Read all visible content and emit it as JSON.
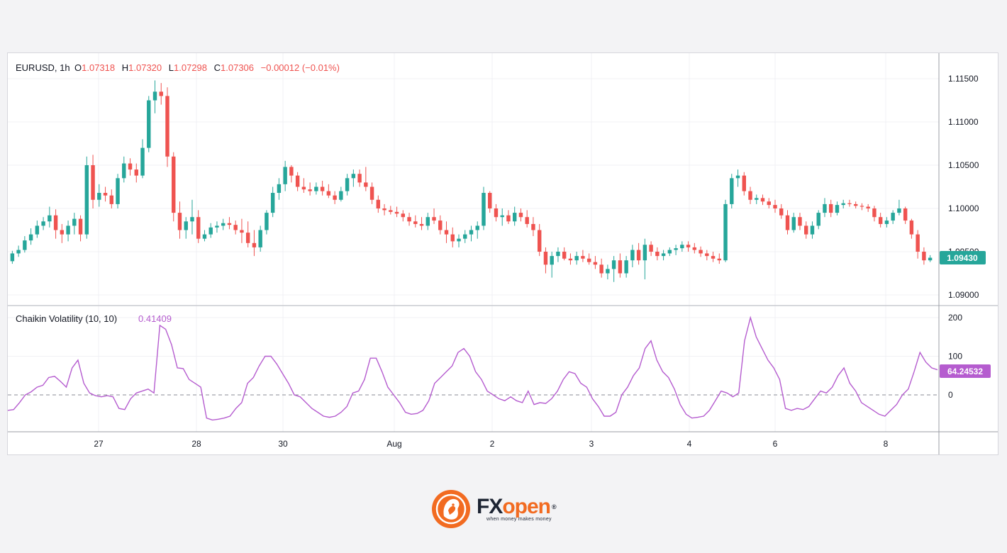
{
  "header": {
    "symbol": "EURUSD, 1h",
    "o_label": "O",
    "o_value": "1.07318",
    "h_label": "H",
    "h_value": "1.07320",
    "l_label": "L",
    "l_value": "1.07298",
    "c_label": "C",
    "c_value": "1.07306",
    "change": "−0.00012 (−0.01%)"
  },
  "indicator": {
    "name": "Chaikin Volatility (10, 10)",
    "value": "0.41409"
  },
  "price_badge": "1.09430",
  "indicator_badge": "64.24532",
  "colors": {
    "up": "#26a69a",
    "down": "#ef5350",
    "indicator": "#b55ccf"
  },
  "brand": {
    "fx": "FX",
    "open": "open",
    "reg": "®",
    "tagline": "when money makes money"
  },
  "chart_data": [
    {
      "type": "candlestick",
      "series_name": "EURUSD, 1h",
      "ylim": [
        1.0885,
        1.1175
      ],
      "y_ticks": [
        "1.11500",
        "1.11000",
        "1.10500",
        "1.10000",
        "1.09500",
        "1.09000"
      ],
      "x_ticks": [
        "27",
        "28",
        "30",
        "Aug",
        "2",
        "3",
        "4",
        "6",
        "8"
      ],
      "grid": true,
      "last_close": 1.0943,
      "candles": [
        [
          1.0939,
          1.0951,
          1.0936,
          1.0948
        ],
        [
          1.0948,
          1.0957,
          1.0944,
          1.0952
        ],
        [
          1.0952,
          1.0968,
          1.0949,
          1.0963
        ],
        [
          1.0963,
          1.0977,
          1.0958,
          1.097
        ],
        [
          1.097,
          1.0986,
          1.0966,
          1.098
        ],
        [
          1.098,
          1.099,
          1.0975,
          1.0985
        ],
        [
          1.0985,
          1.1002,
          1.0978,
          1.0992
        ],
        [
          1.0992,
          1.0999,
          1.0965,
          1.0975
        ],
        [
          1.0975,
          1.0982,
          1.096,
          1.097
        ],
        [
          1.097,
          1.0986,
          1.0962,
          1.098
        ],
        [
          1.098,
          1.0995,
          1.097,
          1.0988
        ],
        [
          1.0988,
          1.0992,
          1.0962,
          1.097
        ],
        [
          1.097,
          1.106,
          1.0965,
          1.105
        ],
        [
          1.105,
          1.1062,
          1.1,
          1.101
        ],
        [
          1.101,
          1.1028,
          1.1002,
          1.1018
        ],
        [
          1.1018,
          1.1025,
          1.1008,
          1.1015
        ],
        [
          1.1015,
          1.1022,
          1.1,
          1.1005
        ],
        [
          1.1005,
          1.104,
          1.1,
          1.1035
        ],
        [
          1.1035,
          1.106,
          1.103,
          1.1052
        ],
        [
          1.1052,
          1.1058,
          1.1038,
          1.1045
        ],
        [
          1.1045,
          1.1052,
          1.103,
          1.1038
        ],
        [
          1.1038,
          1.108,
          1.1035,
          1.107
        ],
        [
          1.107,
          1.113,
          1.1065,
          1.1125
        ],
        [
          1.1125,
          1.1148,
          1.111,
          1.1135
        ],
        [
          1.1135,
          1.1145,
          1.112,
          1.113
        ],
        [
          1.113,
          1.114,
          1.1048,
          1.106
        ],
        [
          1.106,
          1.1065,
          1.0985,
          1.0995
        ],
        [
          1.0995,
          1.1008,
          1.0965,
          1.0975
        ],
        [
          1.0975,
          1.099,
          1.0965,
          1.0985
        ],
        [
          1.0985,
          1.101,
          1.097,
          1.099
        ],
        [
          1.099,
          1.0998,
          1.096,
          1.0965
        ],
        [
          1.0965,
          1.0975,
          1.0962,
          1.097
        ],
        [
          1.097,
          1.0983,
          1.0966,
          1.0978
        ],
        [
          1.0978,
          1.0985,
          1.0972,
          1.098
        ],
        [
          1.098,
          1.0988,
          1.0975,
          1.0983
        ],
        [
          1.0983,
          1.099,
          1.0976,
          1.0981
        ],
        [
          1.0981,
          1.0986,
          1.097,
          1.0975
        ],
        [
          1.0975,
          1.0988,
          1.096,
          1.0972
        ],
        [
          1.0972,
          1.0985,
          1.0955,
          1.096
        ],
        [
          1.096,
          1.0975,
          1.0945,
          1.0955
        ],
        [
          1.0955,
          1.098,
          1.095,
          1.0975
        ],
        [
          1.0975,
          1.0998,
          1.097,
          1.0995
        ],
        [
          1.0995,
          1.1025,
          1.099,
          1.1018
        ],
        [
          1.1018,
          1.1035,
          1.101,
          1.1028
        ],
        [
          1.1028,
          1.1055,
          1.102,
          1.1048
        ],
        [
          1.1048,
          1.105,
          1.103,
          1.1038
        ],
        [
          1.1038,
          1.1042,
          1.102,
          1.1025
        ],
        [
          1.1025,
          1.1035,
          1.1018,
          1.1022
        ],
        [
          1.1022,
          1.103,
          1.1015,
          1.102
        ],
        [
          1.102,
          1.103,
          1.1016,
          1.1025
        ],
        [
          1.1025,
          1.1032,
          1.1015,
          1.102
        ],
        [
          1.102,
          1.1028,
          1.1012,
          1.1015
        ],
        [
          1.1015,
          1.102,
          1.1005,
          1.101
        ],
        [
          1.101,
          1.1025,
          1.1008,
          1.102
        ],
        [
          1.102,
          1.104,
          1.1015,
          1.1035
        ],
        [
          1.1035,
          1.1045,
          1.1025,
          1.104
        ],
        [
          1.104,
          1.1045,
          1.1025,
          1.103
        ],
        [
          1.103,
          1.1048,
          1.102,
          1.1025
        ],
        [
          1.1025,
          1.103,
          1.1005,
          1.101
        ],
        [
          1.101,
          1.1015,
          1.0995,
          1.1
        ],
        [
          1.1,
          1.1005,
          1.0992,
          1.0998
        ],
        [
          1.0998,
          1.1003,
          1.0993,
          1.0996
        ],
        [
          1.0996,
          1.1002,
          1.099,
          1.0994
        ],
        [
          1.0994,
          1.0998,
          1.0985,
          1.099
        ],
        [
          1.099,
          1.0995,
          1.098,
          1.0985
        ],
        [
          1.0985,
          1.0992,
          1.0978,
          1.0982
        ],
        [
          1.0982,
          1.099,
          1.0975,
          1.098
        ],
        [
          1.098,
          1.0995,
          1.0975,
          1.099
        ],
        [
          1.099,
          1.1,
          1.0982,
          1.0986
        ],
        [
          1.0986,
          1.0992,
          1.097,
          1.0975
        ],
        [
          1.0975,
          1.0985,
          1.096,
          1.097
        ],
        [
          1.097,
          1.0978,
          1.0955,
          1.0962
        ],
        [
          1.0962,
          1.097,
          1.0955,
          1.0965
        ],
        [
          1.0965,
          1.0975,
          1.096,
          1.097
        ],
        [
          1.097,
          1.098,
          1.0962,
          1.0975
        ],
        [
          1.0975,
          1.0985,
          1.0965,
          1.098
        ],
        [
          1.098,
          1.1025,
          1.0975,
          1.1018
        ],
        [
          1.1018,
          1.102,
          1.0995,
          1.1
        ],
        [
          1.1,
          1.1005,
          1.0985,
          1.099
        ],
        [
          1.099,
          1.1,
          1.098,
          1.0992
        ],
        [
          1.0992,
          1.0998,
          1.0982,
          1.0985
        ],
        [
          1.0985,
          1.1002,
          1.098,
          1.0995
        ],
        [
          1.0995,
          1.1,
          1.0985,
          1.099
        ],
        [
          1.099,
          1.0998,
          1.0978,
          1.0982
        ],
        [
          1.0982,
          1.099,
          1.0968,
          1.0975
        ],
        [
          1.0975,
          1.0982,
          1.0945,
          1.095
        ],
        [
          1.095,
          1.0955,
          1.0925,
          1.0935
        ],
        [
          1.0935,
          1.095,
          1.092,
          1.0945
        ],
        [
          1.0945,
          1.0955,
          1.0938,
          1.095
        ],
        [
          1.095,
          1.0955,
          1.094,
          1.0942
        ],
        [
          1.0942,
          1.0948,
          1.0935,
          1.094
        ],
        [
          1.094,
          1.095,
          1.0935,
          1.0945
        ],
        [
          1.0945,
          1.0952,
          1.0938,
          1.0942
        ],
        [
          1.0942,
          1.0948,
          1.0935,
          1.0938
        ],
        [
          1.0938,
          1.0945,
          1.093,
          1.0935
        ],
        [
          1.0935,
          1.0942,
          1.092,
          1.0925
        ],
        [
          1.0925,
          1.0935,
          1.0918,
          1.093
        ],
        [
          1.093,
          1.0945,
          1.0915,
          1.094
        ],
        [
          1.094,
          1.0948,
          1.092,
          1.0925
        ],
        [
          1.0925,
          1.0945,
          1.092,
          1.094
        ],
        [
          1.094,
          1.0958,
          1.0932,
          1.0952
        ],
        [
          1.0952,
          1.096,
          1.0935,
          1.094
        ],
        [
          1.094,
          1.0965,
          1.0918,
          1.0958
        ],
        [
          1.0958,
          1.0962,
          1.0945,
          1.095
        ],
        [
          1.095,
          1.0955,
          1.094,
          1.0945
        ],
        [
          1.0945,
          1.0952,
          1.094,
          1.0948
        ],
        [
          1.0948,
          1.0955,
          1.0945,
          1.0952
        ],
        [
          1.0952,
          1.0958,
          1.0946,
          1.0954
        ],
        [
          1.0954,
          1.0962,
          1.095,
          1.0958
        ],
        [
          1.0958,
          1.0962,
          1.095,
          1.0955
        ],
        [
          1.0955,
          1.096,
          1.0948,
          1.0952
        ],
        [
          1.0952,
          1.0956,
          1.0944,
          1.0948
        ],
        [
          1.0948,
          1.0952,
          1.094,
          1.0945
        ],
        [
          1.0945,
          1.095,
          1.0938,
          1.0942
        ],
        [
          1.0942,
          1.0948,
          1.0936,
          1.094
        ],
        [
          1.094,
          1.101,
          1.0938,
          1.1005
        ],
        [
          1.1005,
          1.104,
          1.1,
          1.1035
        ],
        [
          1.1035,
          1.1045,
          1.1025,
          1.1038
        ],
        [
          1.1038,
          1.1042,
          1.1015,
          1.102
        ],
        [
          1.102,
          1.1025,
          1.1005,
          1.101
        ],
        [
          1.101,
          1.1016,
          1.1005,
          1.1012
        ],
        [
          1.1012,
          1.1016,
          1.1004,
          1.1008
        ],
        [
          1.1008,
          1.1012,
          1.1,
          1.1004
        ],
        [
          1.1004,
          1.101,
          1.0995,
          1.1
        ],
        [
          1.1,
          1.1005,
          1.0988,
          1.0992
        ],
        [
          1.0992,
          1.0998,
          1.097,
          1.0975
        ],
        [
          1.0975,
          1.0995,
          1.0972,
          1.099
        ],
        [
          1.099,
          1.0995,
          1.0975,
          1.098
        ],
        [
          1.098,
          1.0985,
          1.0965,
          1.097
        ],
        [
          1.097,
          1.0985,
          1.0965,
          1.098
        ],
        [
          1.098,
          1.0998,
          1.0976,
          1.0995
        ],
        [
          1.0995,
          1.1012,
          1.099,
          1.1005
        ],
        [
          1.1005,
          1.101,
          1.099,
          1.0995
        ],
        [
          1.0995,
          1.1008,
          1.0992,
          1.1004
        ],
        [
          1.1004,
          1.101,
          1.1,
          1.1006
        ],
        [
          1.1006,
          1.101,
          1.1002,
          1.1005
        ],
        [
          1.1005,
          1.1008,
          1.1,
          1.1003
        ],
        [
          1.1003,
          1.1006,
          1.0998,
          1.1002
        ],
        [
          1.1002,
          1.1005,
          1.0996,
          1.1
        ],
        [
          1.1,
          1.1003,
          1.0985,
          1.099
        ],
        [
          1.099,
          1.0995,
          1.0978,
          1.0982
        ],
        [
          1.0982,
          1.099,
          1.0978,
          1.0986
        ],
        [
          1.0986,
          1.0998,
          1.0982,
          1.0995
        ],
        [
          1.0995,
          1.101,
          1.0992,
          1.1
        ],
        [
          1.1,
          1.1002,
          1.0982,
          1.0986
        ],
        [
          1.0986,
          1.0988,
          1.0965,
          1.097
        ],
        [
          1.097,
          1.0975,
          1.0942,
          1.095
        ],
        [
          1.095,
          1.0955,
          1.0935,
          1.094
        ],
        [
          1.094,
          1.0946,
          1.0938,
          1.0943
        ]
      ]
    },
    {
      "type": "line",
      "series_name": "Chaikin Volatility (10, 10)",
      "ylim": [
        -90,
        220
      ],
      "y_ticks": [
        200,
        100,
        0
      ],
      "zero_line": "dashed",
      "last_value": 64.24532,
      "values": [
        -40,
        -38,
        -20,
        0,
        8,
        20,
        25,
        45,
        48,
        35,
        20,
        70,
        90,
        30,
        5,
        -2,
        -5,
        -2,
        -5,
        -35,
        -38,
        -10,
        5,
        10,
        15,
        5,
        180,
        170,
        130,
        70,
        68,
        40,
        30,
        20,
        -60,
        -65,
        -63,
        -60,
        -55,
        -35,
        -20,
        30,
        45,
        75,
        100,
        100,
        80,
        55,
        30,
        0,
        -5,
        -20,
        -35,
        -45,
        -55,
        -58,
        -55,
        -45,
        -30,
        5,
        10,
        40,
        95,
        95,
        60,
        20,
        0,
        -20,
        -45,
        -50,
        -48,
        -40,
        -15,
        30,
        45,
        60,
        75,
        110,
        120,
        100,
        60,
        40,
        10,
        0,
        -10,
        -15,
        -5,
        -15,
        -20,
        10,
        -25,
        -20,
        -22,
        -10,
        10,
        40,
        60,
        55,
        30,
        20,
        -10,
        -30,
        -55,
        -55,
        -45,
        0,
        20,
        50,
        70,
        120,
        140,
        90,
        60,
        45,
        15,
        -25,
        -50,
        -60,
        -58,
        -55,
        -40,
        -15,
        10,
        5,
        -5,
        5,
        140,
        200,
        150,
        120,
        90,
        70,
        40,
        -35,
        -40,
        -35,
        -38,
        -30,
        -10,
        10,
        5,
        20,
        50,
        70,
        30,
        10,
        -20,
        -30,
        -40,
        -50,
        -55,
        -40,
        -25,
        0,
        15,
        60,
        110,
        85,
        70,
        65
      ]
    }
  ]
}
